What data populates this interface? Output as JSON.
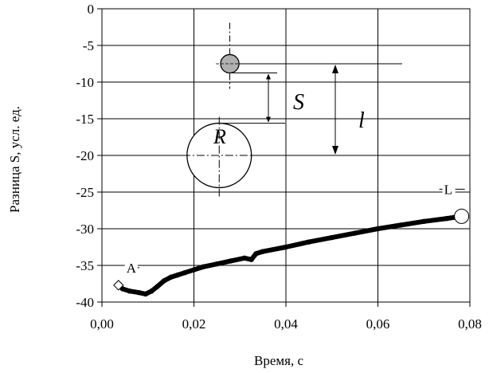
{
  "chart_data": {
    "type": "line",
    "title": "",
    "xlabel": "Время, с",
    "ylabel": "Разница S, усл. ед.",
    "xlim": [
      0,
      0.08
    ],
    "ylim": [
      -40,
      0
    ],
    "grid": true,
    "x_ticks": [
      0,
      0.02,
      0.04,
      0.06,
      0.08
    ],
    "x_tick_labels": [
      "0,00",
      "0,02",
      "0,04",
      "0,06",
      "0,08"
    ],
    "y_ticks": [
      0,
      -5,
      -10,
      -15,
      -20,
      -25,
      -30,
      -35,
      -40
    ],
    "y_tick_labels": [
      "0",
      "-5",
      "-10",
      "-15",
      "-20",
      "-25",
      "-30",
      "-35",
      "-40"
    ],
    "series": [
      {
        "color": "#000000",
        "x": [
          0.0036,
          0.0045,
          0.006,
          0.008,
          0.0095,
          0.0108,
          0.012,
          0.0135,
          0.015,
          0.0165,
          0.018,
          0.02,
          0.022,
          0.025,
          0.028,
          0.031,
          0.0325,
          0.0335,
          0.035,
          0.04,
          0.045,
          0.05,
          0.055,
          0.06,
          0.065,
          0.07,
          0.075,
          0.0782
        ],
        "y": [
          -37.7,
          -38.2,
          -38.5,
          -38.7,
          -38.9,
          -38.5,
          -37.9,
          -37.1,
          -36.6,
          -36.3,
          -36.0,
          -35.6,
          -35.2,
          -34.8,
          -34.4,
          -34.0,
          -34.2,
          -33.4,
          -33.1,
          -32.5,
          -31.8,
          -31.2,
          -30.6,
          -30.0,
          -29.5,
          -29.0,
          -28.6,
          -28.3
        ]
      }
    ],
    "markers": [
      {
        "label": "A",
        "x": 0.0036,
        "y": -37.7,
        "shape": "diamond"
      },
      {
        "label": "L",
        "x": 0.0782,
        "y": -28.3,
        "shape": "circle"
      }
    ],
    "annotations": {
      "S": "S",
      "l": "l",
      "R": "R"
    },
    "inset_diagram": {
      "small_circle": {
        "cx": 0.0278,
        "cy": -7.5,
        "r": 0.002,
        "fill": "#b0b0b0"
      },
      "large_circle": {
        "cx": 0.0255,
        "cy": -20.0,
        "r": 0.007
      }
    }
  }
}
